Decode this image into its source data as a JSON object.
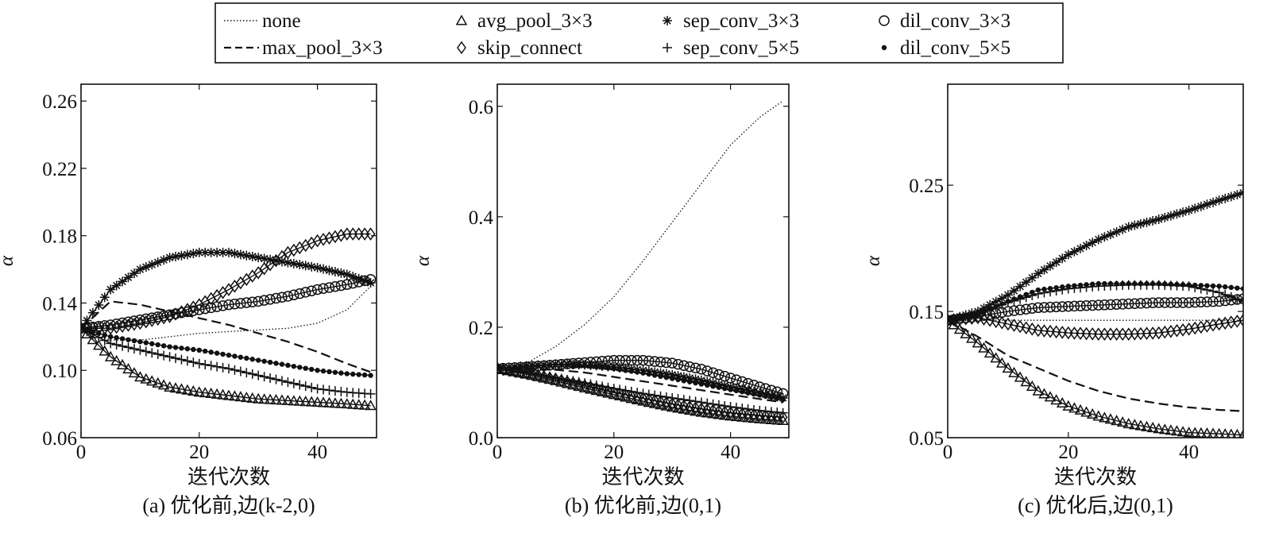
{
  "legend": {
    "entries": [
      {
        "key": "none",
        "label": "none",
        "line": "dotted",
        "marker": "none"
      },
      {
        "key": "max_pool",
        "label": "max_pool_3×3",
        "line": "dashed",
        "marker": "none"
      },
      {
        "key": "avg_pool",
        "label": "avg_pool_3×3",
        "line": "solid",
        "marker": "triangle"
      },
      {
        "key": "skip_connect",
        "label": "skip_connect",
        "line": "solid",
        "marker": "diamond"
      },
      {
        "key": "sep_conv_3",
        "label": "sep_conv_3×3",
        "line": "solid",
        "marker": "asterisk"
      },
      {
        "key": "sep_conv_5",
        "label": "sep_conv_5×5",
        "line": "solid",
        "marker": "plus"
      },
      {
        "key": "dil_conv_3",
        "label": "dil_conv_3×3",
        "line": "solid",
        "marker": "circle"
      },
      {
        "key": "dil_conv_5",
        "label": "dil_conv_5×5",
        "line": "solid",
        "marker": "dot"
      }
    ]
  },
  "chart_data": [
    {
      "type": "line",
      "caption": "(a) 优化前,边(k-2,0)",
      "xlabel": "迭代次数",
      "ylabel": "α",
      "xlim": [
        0,
        50
      ],
      "ylim": [
        0.06,
        0.27
      ],
      "xticks": [
        "0",
        "20",
        "40"
      ],
      "yticks": [
        "0.06",
        "0.10",
        "0.14",
        "0.18",
        "0.22",
        "0.26"
      ],
      "series": [
        {
          "key": "none",
          "x": [
            0,
            5,
            10,
            15,
            20,
            25,
            30,
            35,
            40,
            45,
            49
          ],
          "values": [
            0.125,
            0.118,
            0.118,
            0.12,
            0.122,
            0.123,
            0.124,
            0.125,
            0.128,
            0.136,
            0.15
          ]
        },
        {
          "key": "max_pool",
          "x": [
            0,
            5,
            10,
            15,
            20,
            25,
            30,
            35,
            40,
            45,
            49
          ],
          "values": [
            0.125,
            0.141,
            0.139,
            0.135,
            0.131,
            0.127,
            0.122,
            0.117,
            0.111,
            0.104,
            0.099
          ]
        },
        {
          "key": "avg_pool",
          "x": [
            0,
            5,
            10,
            15,
            20,
            25,
            30,
            35,
            40,
            45,
            49
          ],
          "values": [
            0.125,
            0.108,
            0.096,
            0.09,
            0.087,
            0.085,
            0.083,
            0.082,
            0.081,
            0.08,
            0.079
          ]
        },
        {
          "key": "skip_connect",
          "x": [
            0,
            5,
            10,
            15,
            20,
            25,
            30,
            35,
            40,
            45,
            49
          ],
          "values": [
            0.125,
            0.125,
            0.128,
            0.132,
            0.139,
            0.148,
            0.158,
            0.17,
            0.177,
            0.181,
            0.181
          ]
        },
        {
          "key": "sep_conv_3",
          "x": [
            0,
            5,
            10,
            15,
            20,
            25,
            30,
            35,
            40,
            45,
            49
          ],
          "values": [
            0.125,
            0.148,
            0.16,
            0.167,
            0.17,
            0.17,
            0.167,
            0.164,
            0.161,
            0.157,
            0.152
          ]
        },
        {
          "key": "sep_conv_5",
          "x": [
            0,
            5,
            10,
            15,
            20,
            25,
            30,
            35,
            40,
            45,
            49
          ],
          "values": [
            0.125,
            0.116,
            0.112,
            0.108,
            0.104,
            0.101,
            0.097,
            0.093,
            0.089,
            0.087,
            0.086
          ]
        },
        {
          "key": "dil_conv_3",
          "x": [
            0,
            5,
            10,
            15,
            20,
            25,
            30,
            35,
            40,
            45,
            49
          ],
          "values": [
            0.125,
            0.127,
            0.13,
            0.133,
            0.136,
            0.139,
            0.141,
            0.144,
            0.148,
            0.151,
            0.154
          ]
        },
        {
          "key": "dil_conv_5",
          "x": [
            0,
            5,
            10,
            15,
            20,
            25,
            30,
            35,
            40,
            45,
            49
          ],
          "values": [
            0.125,
            0.12,
            0.117,
            0.114,
            0.112,
            0.109,
            0.106,
            0.103,
            0.1,
            0.098,
            0.097
          ]
        }
      ]
    },
    {
      "type": "line",
      "caption": "(b) 优化前,边(0,1)",
      "xlabel": "迭代次数",
      "ylabel": "α",
      "xlim": [
        0,
        50
      ],
      "ylim": [
        0.0,
        0.64
      ],
      "xticks": [
        "0",
        "20",
        "40"
      ],
      "yticks": [
        "0.0",
        "0.2",
        "0.4",
        "0.6"
      ],
      "series": [
        {
          "key": "none",
          "x": [
            0,
            5,
            10,
            15,
            20,
            25,
            30,
            35,
            40,
            45,
            49
          ],
          "values": [
            0.125,
            0.135,
            0.165,
            0.205,
            0.255,
            0.32,
            0.39,
            0.46,
            0.53,
            0.58,
            0.61
          ]
        },
        {
          "key": "max_pool",
          "x": [
            0,
            5,
            10,
            15,
            20,
            25,
            30,
            35,
            40,
            45,
            49
          ],
          "values": [
            0.125,
            0.125,
            0.123,
            0.118,
            0.11,
            0.102,
            0.094,
            0.086,
            0.078,
            0.07,
            0.064
          ]
        },
        {
          "key": "avg_pool",
          "x": [
            0,
            5,
            10,
            15,
            20,
            25,
            30,
            35,
            40,
            45,
            49
          ],
          "values": [
            0.125,
            0.115,
            0.103,
            0.09,
            0.078,
            0.066,
            0.055,
            0.046,
            0.039,
            0.034,
            0.031
          ]
        },
        {
          "key": "skip_connect",
          "x": [
            0,
            5,
            10,
            15,
            20,
            25,
            30,
            35,
            40,
            45,
            49
          ],
          "values": [
            0.125,
            0.117,
            0.106,
            0.094,
            0.082,
            0.071,
            0.061,
            0.052,
            0.045,
            0.04,
            0.037
          ]
        },
        {
          "key": "sep_conv_3",
          "x": [
            0,
            5,
            10,
            15,
            20,
            25,
            30,
            35,
            40,
            45,
            49
          ],
          "values": [
            0.125,
            0.13,
            0.133,
            0.132,
            0.128,
            0.122,
            0.114,
            0.104,
            0.092,
            0.081,
            0.072
          ]
        },
        {
          "key": "sep_conv_5",
          "x": [
            0,
            5,
            10,
            15,
            20,
            25,
            30,
            35,
            40,
            45,
            49
          ],
          "values": [
            0.125,
            0.118,
            0.109,
            0.099,
            0.089,
            0.08,
            0.072,
            0.064,
            0.056,
            0.049,
            0.045
          ]
        },
        {
          "key": "dil_conv_3",
          "x": [
            0,
            5,
            10,
            15,
            20,
            25,
            30,
            35,
            40,
            45,
            49
          ],
          "values": [
            0.125,
            0.128,
            0.132,
            0.136,
            0.14,
            0.14,
            0.135,
            0.124,
            0.108,
            0.092,
            0.08
          ]
        },
        {
          "key": "dil_conv_5",
          "x": [
            0,
            5,
            10,
            15,
            20,
            25,
            30,
            35,
            40,
            45,
            49
          ],
          "values": [
            0.125,
            0.13,
            0.132,
            0.13,
            0.125,
            0.117,
            0.107,
            0.097,
            0.087,
            0.077,
            0.069
          ]
        }
      ]
    },
    {
      "type": "line",
      "caption": "(c) 优化后,边(0,1)",
      "xlabel": "迭代次数",
      "ylabel": "α",
      "xlim": [
        0,
        49
      ],
      "ylim": [
        0.05,
        0.33
      ],
      "xticks": [
        "0",
        "20",
        "40"
      ],
      "yticks": [
        "0.05",
        "0.15",
        "0.25"
      ],
      "series": [
        {
          "key": "none",
          "x": [
            0,
            5,
            10,
            15,
            20,
            25,
            30,
            35,
            40,
            45,
            49
          ],
          "values": [
            0.143,
            0.143,
            0.143,
            0.143,
            0.143,
            0.143,
            0.143,
            0.143,
            0.143,
            0.143,
            0.143
          ]
        },
        {
          "key": "max_pool",
          "x": [
            0,
            5,
            10,
            15,
            20,
            25,
            30,
            35,
            40,
            45,
            49
          ],
          "values": [
            0.143,
            0.13,
            0.115,
            0.105,
            0.095,
            0.087,
            0.081,
            0.077,
            0.074,
            0.072,
            0.071
          ]
        },
        {
          "key": "avg_pool",
          "x": [
            0,
            5,
            10,
            15,
            20,
            25,
            30,
            35,
            40,
            45,
            49
          ],
          "values": [
            0.143,
            0.125,
            0.105,
            0.087,
            0.075,
            0.067,
            0.061,
            0.057,
            0.054,
            0.053,
            0.052
          ]
        },
        {
          "key": "skip_connect",
          "x": [
            0,
            5,
            10,
            15,
            20,
            25,
            30,
            35,
            40,
            45,
            49
          ],
          "values": [
            0.143,
            0.145,
            0.14,
            0.135,
            0.133,
            0.132,
            0.132,
            0.133,
            0.136,
            0.14,
            0.143
          ]
        },
        {
          "key": "sep_conv_3",
          "x": [
            0,
            5,
            10,
            15,
            20,
            25,
            30,
            35,
            40,
            45,
            49
          ],
          "values": [
            0.143,
            0.15,
            0.163,
            0.18,
            0.195,
            0.207,
            0.217,
            0.223,
            0.23,
            0.238,
            0.244
          ]
        },
        {
          "key": "sep_conv_5",
          "x": [
            0,
            5,
            10,
            15,
            20,
            25,
            30,
            35,
            40,
            45,
            49
          ],
          "values": [
            0.143,
            0.148,
            0.157,
            0.164,
            0.168,
            0.17,
            0.171,
            0.171,
            0.17,
            0.165,
            0.158
          ]
        },
        {
          "key": "dil_conv_3",
          "x": [
            0,
            5,
            10,
            15,
            20,
            25,
            30,
            35,
            40,
            45,
            49
          ],
          "values": [
            0.143,
            0.146,
            0.15,
            0.153,
            0.154,
            0.155,
            0.156,
            0.157,
            0.157,
            0.158,
            0.16
          ]
        },
        {
          "key": "dil_conv_5",
          "x": [
            0,
            5,
            10,
            15,
            20,
            25,
            30,
            35,
            40,
            45,
            49
          ],
          "values": [
            0.143,
            0.148,
            0.158,
            0.167,
            0.17,
            0.172,
            0.172,
            0.172,
            0.171,
            0.17,
            0.168
          ]
        }
      ]
    }
  ]
}
